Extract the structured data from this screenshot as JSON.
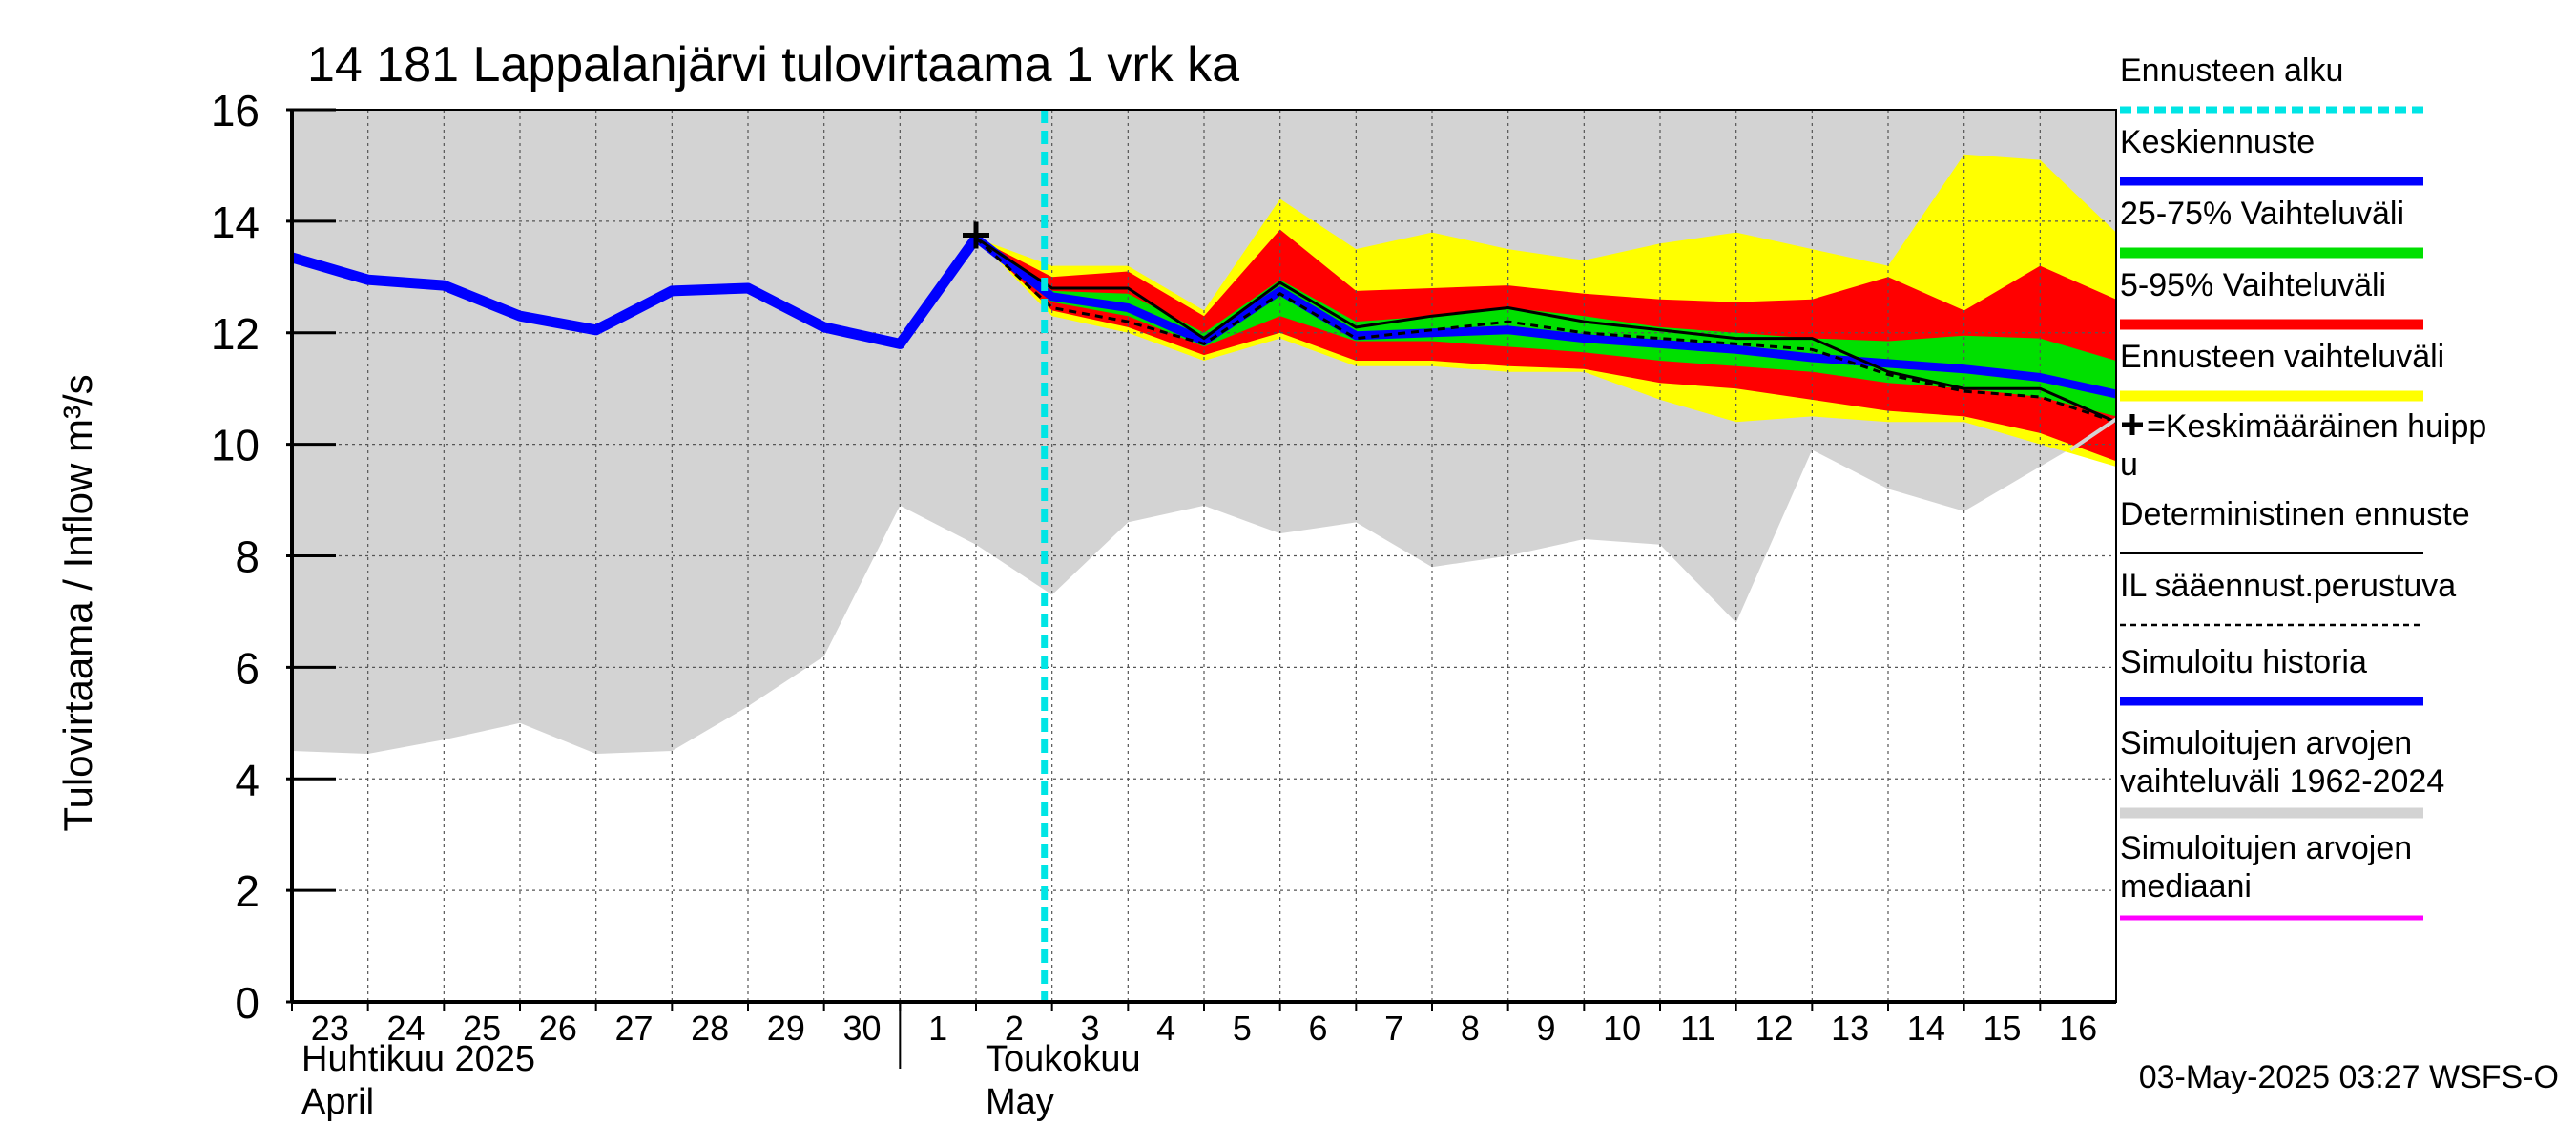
{
  "chart_data": {
    "type": "line",
    "title": "14 181 Lappalanjärvi tulovirtaama 1 vrk ka",
    "ylabel": "Tulovirtaama / Inflow    m³/s",
    "ylim": [
      0,
      16
    ],
    "yticks": [
      0,
      2,
      4,
      6,
      8,
      10,
      12,
      14,
      16
    ],
    "x_tick_labels": [
      "23",
      "24",
      "25",
      "26",
      "27",
      "28",
      "29",
      "30",
      "1",
      "2",
      "3",
      "4",
      "5",
      "6",
      "7",
      "8",
      "9",
      "10",
      "11",
      "12",
      "13",
      "14",
      "15",
      "16"
    ],
    "month_labels": [
      {
        "fi": "Huhtikuu  2025",
        "en": "April",
        "start_index": 0
      },
      {
        "fi": "Toukokuu",
        "en": "May",
        "start_index": 9
      }
    ],
    "forecast_start_index": 9.9,
    "footer": "03-May-2025 03:27 WSFS-O",
    "x_index_range": [
      0,
      24
    ],
    "grid": true,
    "colors": {
      "hist_range": "#d3d3d3",
      "sim_history": "#0000ff",
      "mean_forecast": "#0000ff",
      "p25_75": "#00e000",
      "p5_95": "#ff0000",
      "forecast_range": "#ffff00",
      "deterministic": "#000000",
      "forecast_start": "#00e5e5",
      "median": "#ff00ff"
    },
    "series": {
      "hist_range_upper_x": [
        0,
        24
      ],
      "hist_range_upper": [
        16,
        16
      ],
      "hist_range_lower_x": [
        0,
        1,
        2,
        3,
        4,
        5,
        6,
        7,
        8,
        9,
        10,
        11,
        12,
        13,
        14,
        15,
        16,
        17,
        18,
        19,
        20,
        21,
        22,
        23,
        24
      ],
      "hist_range_lower": [
        4.5,
        4.45,
        4.7,
        5.0,
        4.45,
        4.5,
        5.3,
        6.2,
        8.9,
        8.2,
        7.3,
        8.6,
        8.9,
        8.4,
        8.6,
        7.8,
        8.0,
        8.3,
        8.2,
        6.8,
        9.9,
        9.2,
        8.8,
        9.6,
        10.4
      ],
      "simulated_history_x": [
        0,
        1,
        2,
        3,
        4,
        5,
        6,
        7,
        8,
        9
      ],
      "simulated_history": [
        13.35,
        12.95,
        12.85,
        12.3,
        12.05,
        12.75,
        12.8,
        12.1,
        11.8,
        13.7
      ],
      "forecast_x": [
        9,
        10,
        11,
        12,
        13,
        14,
        15,
        16,
        17,
        18,
        19,
        20,
        21,
        22,
        23,
        24
      ],
      "forecast_range_upper": [
        13.7,
        13.2,
        13.2,
        12.4,
        14.4,
        13.5,
        13.8,
        13.5,
        13.3,
        13.6,
        13.8,
        13.5,
        13.2,
        15.2,
        15.1,
        13.8
      ],
      "forecast_range_lower": [
        13.7,
        12.3,
        12.0,
        11.5,
        11.9,
        11.4,
        11.4,
        11.3,
        11.3,
        10.8,
        10.4,
        10.5,
        10.4,
        10.4,
        10.0,
        9.6
      ],
      "p5_95_upper": [
        13.7,
        13.0,
        13.1,
        12.3,
        13.85,
        12.75,
        12.8,
        12.85,
        12.7,
        12.6,
        12.55,
        12.6,
        13.0,
        12.4,
        13.2,
        12.6
      ],
      "p5_95_lower": [
        13.7,
        12.4,
        12.1,
        11.6,
        12.0,
        11.5,
        11.5,
        11.4,
        11.35,
        11.1,
        11.0,
        10.8,
        10.6,
        10.5,
        10.2,
        9.7
      ],
      "p25_75_upper": [
        13.7,
        12.75,
        12.7,
        12.0,
        12.95,
        12.2,
        12.3,
        12.45,
        12.3,
        12.1,
        12.0,
        11.9,
        11.85,
        11.95,
        11.9,
        11.5
      ],
      "p25_75_lower": [
        13.7,
        12.55,
        12.3,
        11.75,
        12.3,
        11.85,
        11.85,
        11.75,
        11.65,
        11.5,
        11.4,
        11.3,
        11.1,
        11.0,
        10.85,
        10.5
      ],
      "mean_forecast": [
        13.7,
        12.65,
        12.45,
        11.85,
        12.75,
        11.95,
        12.0,
        12.05,
        11.9,
        11.8,
        11.7,
        11.55,
        11.45,
        11.35,
        11.2,
        10.9
      ],
      "deterministic": [
        13.7,
        12.8,
        12.8,
        11.9,
        12.9,
        12.1,
        12.3,
        12.45,
        12.2,
        12.05,
        11.9,
        11.9,
        11.3,
        11.0,
        11.0,
        10.4
      ],
      "il_forecast": [
        13.7,
        12.45,
        12.2,
        11.8,
        12.7,
        11.9,
        12.05,
        12.2,
        12.0,
        11.9,
        11.8,
        11.7,
        11.25,
        10.95,
        10.85,
        10.4
      ]
    },
    "mean_peak_marker": {
      "x": 9,
      "y": 13.75
    },
    "end_connector": {
      "x": [
        23.4,
        24
      ],
      "y": [
        9.9,
        10.45
      ]
    },
    "legend": [
      {
        "label": "Ennusteen alku",
        "style": "dash-cyan"
      },
      {
        "label": "Keskiennuste",
        "style": "solid-blue"
      },
      {
        "label": "25-75% Vaihteluväli",
        "style": "solid-green"
      },
      {
        "label": "5-95% Vaihteluväli",
        "style": "solid-red"
      },
      {
        "label": "Ennusteen vaihteluväli",
        "style": "solid-yellow"
      },
      {
        "label": "=Keskimääräinen huipp",
        "label2": "u",
        "style": "plus-marker"
      },
      {
        "label": "Deterministinen ennuste",
        "style": "thin-black"
      },
      {
        "label": "IL sääennust.perustuva",
        "style": "dashed-black"
      },
      {
        "label": "Simuloitu historia",
        "style": "solid-blue"
      },
      {
        "label": "Simuloitujen arvojen",
        "label2": "vaihteluväli 1962-2024",
        "style": "solid-gray"
      },
      {
        "label": "Simuloitujen arvojen",
        "label2": "mediaani",
        "style": "solid-magenta"
      }
    ]
  }
}
